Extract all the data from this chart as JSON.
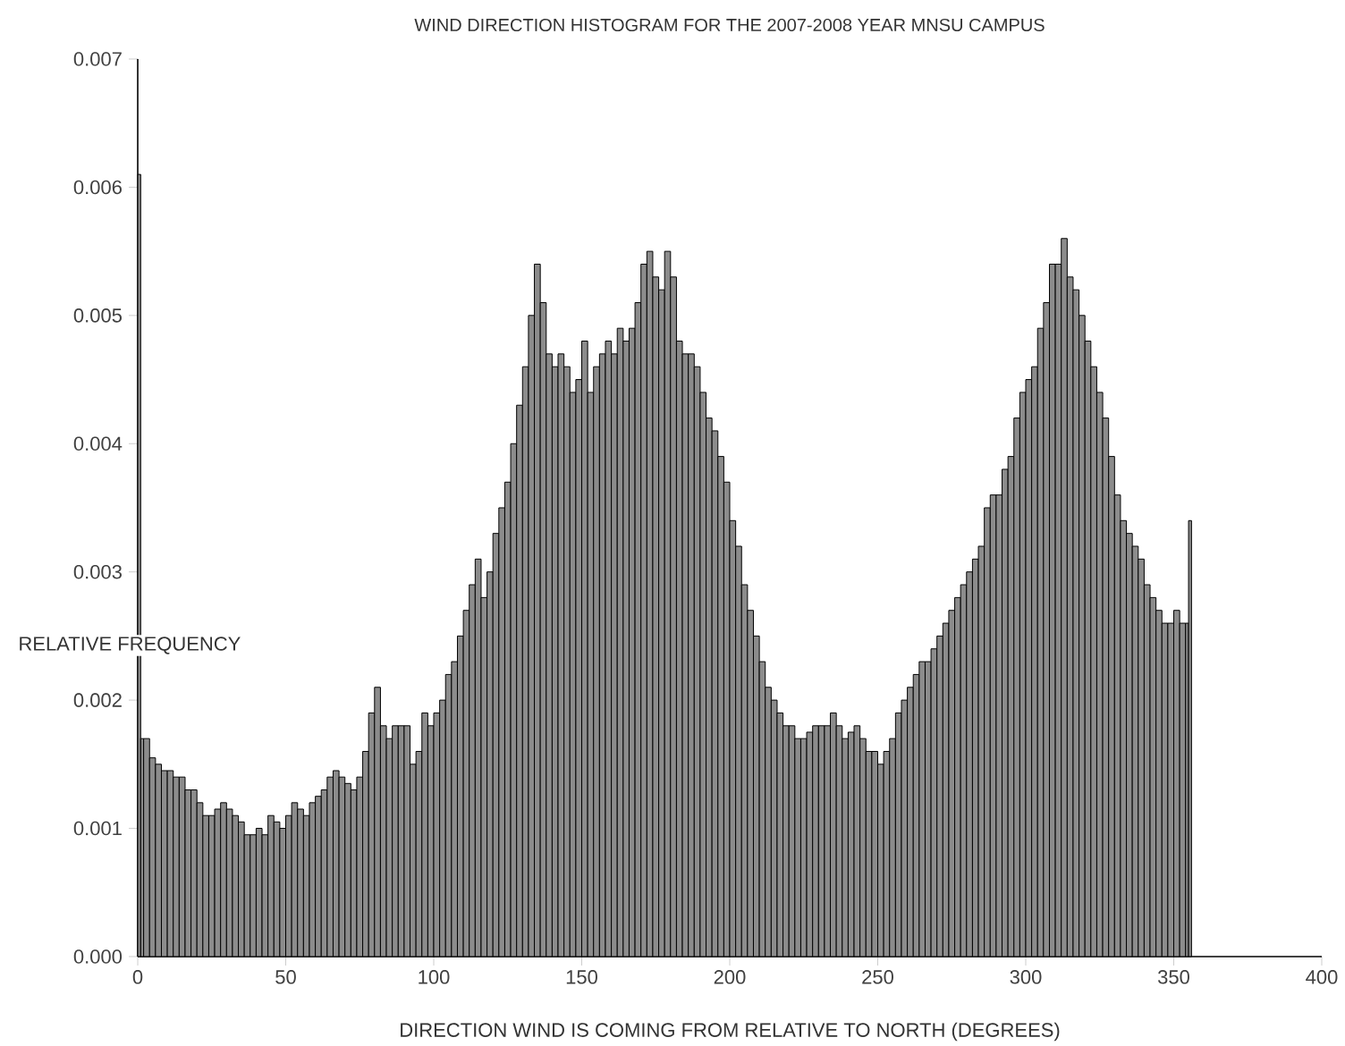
{
  "chart_data": {
    "type": "histogram",
    "title": "WIND DIRECTION HISTOGRAM FOR THE 2007-2008 YEAR MNSU CAMPUS",
    "xlabel": "DIRECTION WIND IS COMING FROM RELATIVE TO NORTH (DEGREES)",
    "ylabel": "RELATIVE FREQUENCY",
    "color": "#8c8c8c",
    "bins": [
      0,
      1,
      2,
      4,
      6,
      8,
      10,
      12,
      14,
      16,
      18,
      20,
      22,
      24,
      26,
      28,
      30,
      32,
      34,
      36,
      38,
      40,
      42,
      44,
      46,
      48,
      50,
      52,
      54,
      56,
      58,
      60,
      62,
      64,
      66,
      68,
      70,
      72,
      74,
      76,
      78,
      80,
      82,
      84,
      86,
      88,
      90,
      92,
      94,
      96,
      98,
      100,
      102,
      104,
      106,
      108,
      110,
      112,
      114,
      116,
      118,
      120,
      122,
      124,
      126,
      128,
      130,
      132,
      134,
      136,
      138,
      140,
      142,
      144,
      146,
      148,
      150,
      152,
      154,
      156,
      158,
      160,
      162,
      164,
      166,
      168,
      170,
      172,
      174,
      176,
      178,
      180,
      182,
      184,
      186,
      188,
      190,
      192,
      194,
      196,
      198,
      200,
      202,
      204,
      206,
      208,
      210,
      212,
      214,
      216,
      218,
      220,
      222,
      224,
      226,
      228,
      230,
      232,
      234,
      236,
      238,
      240,
      242,
      244,
      246,
      248,
      250,
      252,
      254,
      256,
      258,
      260,
      262,
      264,
      266,
      268,
      270,
      272,
      274,
      276,
      278,
      280,
      282,
      284,
      286,
      288,
      290,
      292,
      294,
      296,
      298,
      300,
      302,
      304,
      306,
      308,
      310,
      312,
      314,
      316,
      318,
      320,
      322,
      324,
      326,
      328,
      330,
      332,
      334,
      336,
      338,
      340,
      342,
      344,
      346,
      348,
      350,
      352,
      354,
      355,
      356
    ],
    "values": [
      0.0061,
      0.0017,
      0.0017,
      0.00155,
      0.0015,
      0.00145,
      0.00145,
      0.0014,
      0.0014,
      0.0013,
      0.0013,
      0.0012,
      0.0011,
      0.0011,
      0.00115,
      0.0012,
      0.00115,
      0.0011,
      0.00105,
      0.00095,
      0.00095,
      0.001,
      0.00095,
      0.0011,
      0.00105,
      0.001,
      0.0011,
      0.0012,
      0.00115,
      0.0011,
      0.0012,
      0.00125,
      0.0013,
      0.0014,
      0.00145,
      0.0014,
      0.00135,
      0.0013,
      0.0014,
      0.0016,
      0.0019,
      0.0021,
      0.0018,
      0.0017,
      0.0018,
      0.0018,
      0.0018,
      0.0015,
      0.0016,
      0.0019,
      0.0018,
      0.0019,
      0.002,
      0.0022,
      0.0023,
      0.0025,
      0.0027,
      0.0029,
      0.0031,
      0.0028,
      0.003,
      0.0033,
      0.0035,
      0.0037,
      0.004,
      0.0043,
      0.0046,
      0.005,
      0.0054,
      0.0051,
      0.0047,
      0.0046,
      0.0047,
      0.0046,
      0.0044,
      0.0045,
      0.0048,
      0.0044,
      0.0046,
      0.0047,
      0.0048,
      0.0047,
      0.0049,
      0.0048,
      0.0049,
      0.0051,
      0.0054,
      0.0055,
      0.0053,
      0.0052,
      0.0055,
      0.0053,
      0.0048,
      0.0047,
      0.0047,
      0.0046,
      0.0044,
      0.0042,
      0.0041,
      0.0039,
      0.0037,
      0.0034,
      0.0032,
      0.0029,
      0.0027,
      0.0025,
      0.0023,
      0.0021,
      0.002,
      0.0019,
      0.0018,
      0.0018,
      0.0017,
      0.0017,
      0.00175,
      0.0018,
      0.0018,
      0.0018,
      0.0019,
      0.0018,
      0.0017,
      0.00175,
      0.0018,
      0.0017,
      0.0016,
      0.0016,
      0.0015,
      0.0016,
      0.0017,
      0.0019,
      0.002,
      0.0021,
      0.0022,
      0.0023,
      0.0023,
      0.0024,
      0.0025,
      0.0026,
      0.0027,
      0.0028,
      0.0029,
      0.003,
      0.0031,
      0.0032,
      0.0035,
      0.0036,
      0.0036,
      0.0038,
      0.0039,
      0.0042,
      0.0044,
      0.0045,
      0.0046,
      0.0049,
      0.0051,
      0.0054,
      0.0054,
      0.0056,
      0.0053,
      0.0052,
      0.005,
      0.0048,
      0.0046,
      0.0044,
      0.0042,
      0.0039,
      0.0036,
      0.0034,
      0.0033,
      0.0032,
      0.0031,
      0.0029,
      0.0028,
      0.0027,
      0.0026,
      0.0026,
      0.0027,
      0.0026,
      0.0026,
      0.0034
    ],
    "xlim": [
      0,
      400
    ],
    "xticks": [
      0,
      50,
      100,
      150,
      200,
      250,
      300,
      350,
      400
    ],
    "ylim": [
      0,
      0.007
    ],
    "yticks": [
      {
        "value": 0,
        "label": "0.000"
      },
      {
        "value": 0.001,
        "label": "0.001"
      },
      {
        "value": 0.002,
        "label": "0.002"
      },
      {
        "value": 0.003,
        "label": "0.003"
      },
      {
        "value": 0.004,
        "label": "0.004"
      },
      {
        "value": 0.005,
        "label": "0.005"
      },
      {
        "value": 0.006,
        "label": "0.006"
      },
      {
        "value": 0.007,
        "label": "0.007"
      }
    ]
  }
}
